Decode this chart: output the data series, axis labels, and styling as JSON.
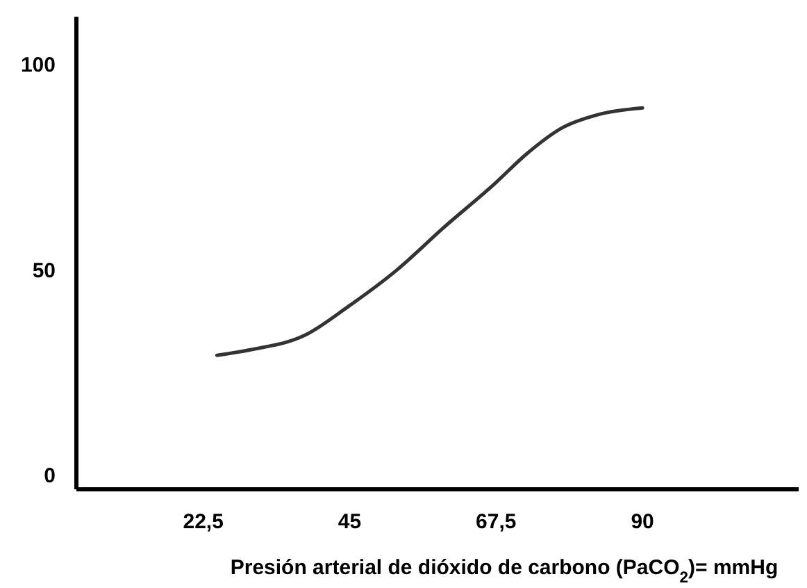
{
  "chart_data": {
    "type": "line",
    "xlabel": "Presión arterial de dióxido de carbono (PaCO$_{2}$)= mmHg",
    "xlim": [
      3,
      114
    ],
    "ylim": [
      -3,
      112
    ],
    "xticks": [
      {
        "value": 22.5,
        "label": "22,5"
      },
      45,
      {
        "value": 67.5,
        "label": "67,5"
      },
      90
    ],
    "yticks": [
      0,
      50,
      100
    ],
    "grid": false,
    "marker": "none",
    "line_style": "solid",
    "series": [
      {
        "color": "#333333",
        "x": [
          24.6,
          29.9,
          38,
          44.8,
          52.2,
          59.6,
          67.1,
          72.4,
          77.7,
          83,
          90
        ],
        "values": [
          29.6,
          31,
          34.4,
          41.5,
          50.3,
          60.9,
          71.1,
          78.9,
          85,
          88.1,
          89.8
        ]
      }
    ]
  }
}
